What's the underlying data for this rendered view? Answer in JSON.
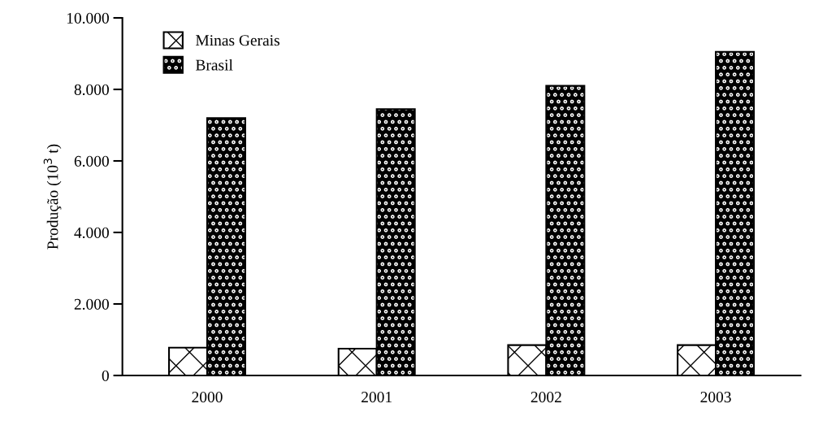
{
  "chart_data": {
    "type": "bar",
    "ylabel": "Produção (10$^{3}$ t)",
    "categories": [
      "2000",
      "2001",
      "2002",
      "2003"
    ],
    "series": [
      {
        "name": "Minas Gerais",
        "color": "#ffffff",
        "values": [
          780,
          750,
          850,
          850
        ]
      },
      {
        "name": "Brasil",
        "color": "#000000",
        "values": [
          7200,
          7450,
          8100,
          9050
        ]
      }
    ],
    "ylim": [
      0,
      10000
    ],
    "yticks": [
      {
        "value": 0,
        "label": "0"
      },
      {
        "value": 2000,
        "label": "2.000"
      },
      {
        "value": 4000,
        "label": "4.000"
      },
      {
        "value": 6000,
        "label": "6.000"
      },
      {
        "value": 8000,
        "label": "8.000"
      },
      {
        "value": 10000,
        "label": "10.000"
      }
    ],
    "grid": false,
    "legend": "top left"
  }
}
